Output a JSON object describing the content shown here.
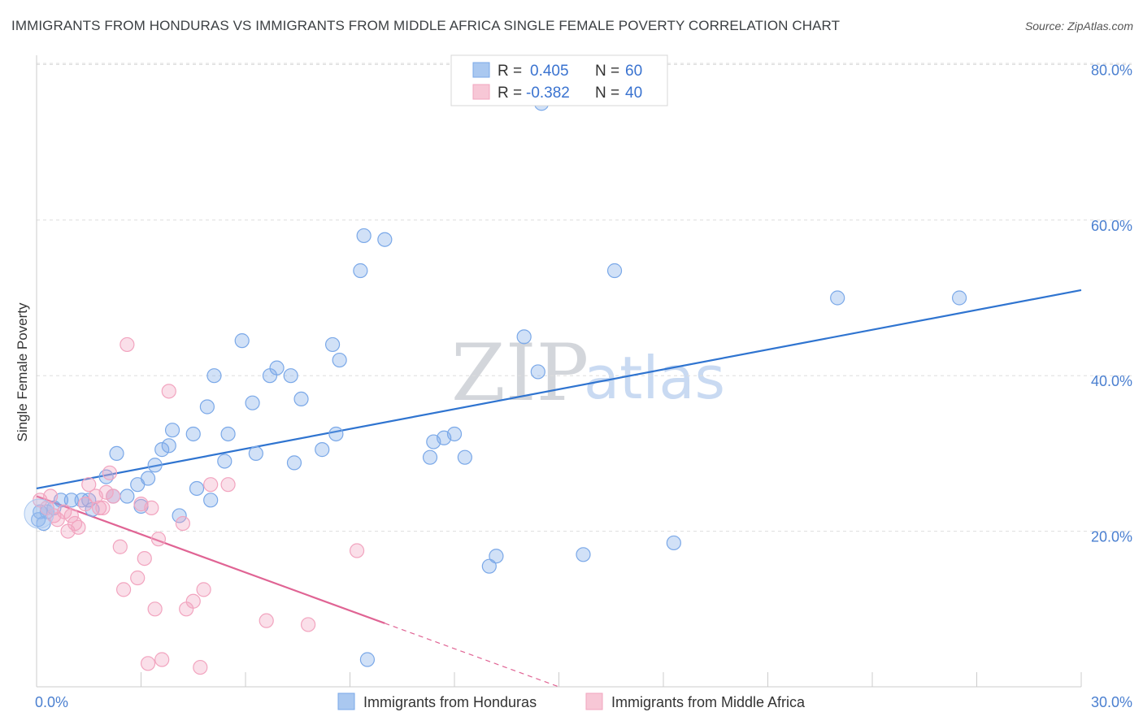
{
  "title": "IMMIGRANTS FROM HONDURAS VS IMMIGRANTS FROM MIDDLE AFRICA SINGLE FEMALE POVERTY CORRELATION CHART",
  "source": "Source: ZipAtlas.com",
  "watermark": {
    "zip": "ZIP",
    "atlas": "atlas"
  },
  "legend": {
    "r_label": "R =",
    "n_label": "N =",
    "series": [
      {
        "r": "0.405",
        "n": "60"
      },
      {
        "r": "-0.382",
        "n": "40"
      }
    ]
  },
  "chart_data": {
    "type": "scatter",
    "title": "IMMIGRANTS FROM HONDURAS VS IMMIGRANTS FROM MIDDLE AFRICA SINGLE FEMALE POVERTY CORRELATION CHART",
    "xlabel": "",
    "ylabel": "Single Female Poverty",
    "xlim": [
      0,
      30
    ],
    "ylim": [
      0,
      80
    ],
    "x_tick_labels": [
      "0.0%",
      "30.0%"
    ],
    "y_tick_labels": [
      "20.0%",
      "40.0%",
      "60.0%",
      "80.0%"
    ],
    "y_tick_values": [
      20,
      40,
      60,
      80
    ],
    "grid": true,
    "legend_position": "top-center",
    "series": [
      {
        "name": "Immigrants from Honduras",
        "color": "#7aa8e8",
        "line_color": "#2f74d0",
        "trend": {
          "x": [
            0,
            30
          ],
          "y": [
            25.5,
            51.0
          ],
          "solid_until": 30
        },
        "points": [
          [
            0.1,
            22.5
          ],
          [
            0.3,
            22.5
          ],
          [
            0.5,
            23.0
          ],
          [
            0.7,
            24.0
          ],
          [
            1.0,
            24.0
          ],
          [
            1.3,
            24.0
          ],
          [
            1.6,
            22.8
          ],
          [
            2.0,
            27.0
          ],
          [
            2.3,
            30.0
          ],
          [
            2.6,
            24.5
          ],
          [
            2.9,
            26.0
          ],
          [
            3.0,
            23.2
          ],
          [
            3.2,
            26.8
          ],
          [
            3.4,
            28.5
          ],
          [
            3.6,
            30.5
          ],
          [
            3.8,
            31.0
          ],
          [
            3.9,
            33.0
          ],
          [
            4.1,
            22.0
          ],
          [
            4.5,
            32.5
          ],
          [
            4.6,
            25.5
          ],
          [
            4.9,
            36.0
          ],
          [
            5.1,
            40.0
          ],
          [
            5.4,
            29.0
          ],
          [
            5.5,
            32.5
          ],
          [
            5.9,
            44.5
          ],
          [
            6.2,
            36.5
          ],
          [
            6.3,
            30.0
          ],
          [
            6.7,
            40.0
          ],
          [
            6.9,
            41.0
          ],
          [
            7.3,
            40.0
          ],
          [
            7.4,
            28.8
          ],
          [
            7.6,
            37.0
          ],
          [
            8.2,
            30.5
          ],
          [
            8.5,
            44.0
          ],
          [
            8.6,
            32.5
          ],
          [
            8.7,
            42.0
          ],
          [
            9.3,
            53.5
          ],
          [
            9.4,
            58.0
          ],
          [
            9.5,
            3.5
          ],
          [
            10.0,
            57.5
          ],
          [
            11.3,
            29.5
          ],
          [
            11.4,
            31.5
          ],
          [
            11.7,
            32.0
          ],
          [
            12.0,
            32.5
          ],
          [
            12.3,
            29.5
          ],
          [
            13.0,
            15.5
          ],
          [
            13.2,
            16.8
          ],
          [
            14.0,
            45.0
          ],
          [
            14.4,
            40.5
          ],
          [
            14.5,
            75.0
          ],
          [
            15.7,
            17.0
          ],
          [
            16.6,
            53.5
          ],
          [
            18.3,
            18.5
          ],
          [
            23.0,
            50.0
          ],
          [
            26.5,
            50.0
          ],
          [
            0.05,
            21.5
          ],
          [
            0.2,
            21.0
          ],
          [
            1.5,
            24.0
          ],
          [
            2.2,
            24.5
          ],
          [
            5.0,
            24.0
          ]
        ]
      },
      {
        "name": "Immigrants from Middle Africa",
        "color": "#f2a4bf",
        "line_color": "#e06494",
        "trend": {
          "x": [
            0,
            15
          ],
          "y": [
            24.5,
            0.0
          ],
          "solid_until": 10
        },
        "points": [
          [
            0.1,
            24.0
          ],
          [
            0.3,
            23.0
          ],
          [
            0.5,
            22.0
          ],
          [
            0.8,
            22.5
          ],
          [
            0.9,
            20.0
          ],
          [
            1.1,
            21.0
          ],
          [
            1.2,
            20.5
          ],
          [
            1.4,
            23.5
          ],
          [
            1.5,
            26.0
          ],
          [
            1.7,
            24.5
          ],
          [
            1.8,
            23.0
          ],
          [
            2.0,
            25.0
          ],
          [
            2.1,
            27.5
          ],
          [
            2.2,
            24.5
          ],
          [
            2.4,
            18.0
          ],
          [
            2.5,
            12.5
          ],
          [
            2.6,
            44.0
          ],
          [
            2.9,
            14.0
          ],
          [
            3.0,
            23.5
          ],
          [
            3.1,
            16.5
          ],
          [
            3.2,
            3.0
          ],
          [
            3.4,
            10.0
          ],
          [
            3.5,
            19.0
          ],
          [
            3.6,
            3.5
          ],
          [
            3.8,
            38.0
          ],
          [
            4.2,
            21.0
          ],
          [
            4.3,
            10.0
          ],
          [
            4.5,
            11.0
          ],
          [
            4.7,
            2.5
          ],
          [
            4.8,
            12.5
          ],
          [
            5.0,
            26.0
          ],
          [
            5.5,
            26.0
          ],
          [
            6.6,
            8.5
          ],
          [
            7.8,
            8.0
          ],
          [
            9.2,
            17.5
          ],
          [
            0.6,
            21.5
          ],
          [
            1.0,
            22.0
          ],
          [
            1.9,
            23.0
          ],
          [
            3.3,
            23.0
          ],
          [
            0.4,
            24.5
          ]
        ]
      }
    ]
  },
  "bottom_legend": [
    {
      "label": "Immigrants from Honduras",
      "color": "#aac8f0",
      "stroke": "#7aa8e8"
    },
    {
      "label": "Immigrants from Middle Africa",
      "color": "#f7c7d6",
      "stroke": "#f2a4bf"
    }
  ]
}
